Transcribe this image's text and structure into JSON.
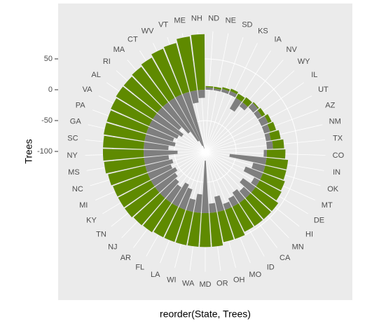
{
  "chart_data": {
    "type": "polar-bar",
    "x_label": "reorder(State, Trees)",
    "y_label": "Trees",
    "categories": [
      "ND",
      "NE",
      "SD",
      "KS",
      "IA",
      "NV",
      "WY",
      "IL",
      "UT",
      "AZ",
      "NM",
      "TX",
      "CO",
      "IN",
      "OK",
      "MT",
      "DE",
      "HI",
      "MN",
      "CA",
      "ID",
      "MO",
      "OH",
      "OR",
      "MD",
      "WA",
      "WI",
      "LA",
      "FL",
      "AR",
      "NJ",
      "TN",
      "KY",
      "MI",
      "NC",
      "MS",
      "NY",
      "SC",
      "GA",
      "PA",
      "VA",
      "AL",
      "RI",
      "MA",
      "CT",
      "WV",
      "VT",
      "ME",
      "NH"
    ],
    "series": [
      {
        "color": "#7f7f7f",
        "values": [
          4,
          3,
          5,
          6,
          -20,
          -8,
          10,
          8,
          12,
          10,
          8,
          10,
          -5,
          -60,
          -20,
          -30,
          -10,
          -25,
          -15,
          -20,
          -15,
          -10,
          -25,
          -15,
          -85,
          -30,
          -20,
          -35,
          -40,
          -30,
          -35,
          -40,
          -45,
          -40,
          -45,
          -40,
          -55,
          -40,
          -50,
          -45,
          -50,
          -55,
          -45,
          -60,
          -80,
          -90,
          -95,
          -20,
          -13
        ]
      },
      {
        "color": "#5f8a00",
        "values": [
          2,
          3,
          3,
          4,
          8,
          10,
          2,
          6,
          6,
          10,
          16,
          18,
          30,
          35,
          35,
          38,
          40,
          45,
          45,
          45,
          45,
          50,
          50,
          55,
          55,
          55,
          55,
          55,
          55,
          57,
          58,
          60,
          60,
          60,
          62,
          65,
          66,
          66,
          67,
          67,
          68,
          70,
          70,
          72,
          75,
          80,
          82,
          88,
          90
        ]
      }
    ],
    "ylim": [
      -100,
      95
    ],
    "yticks": [
      -100,
      -50,
      0,
      50
    ],
    "grid": true
  }
}
